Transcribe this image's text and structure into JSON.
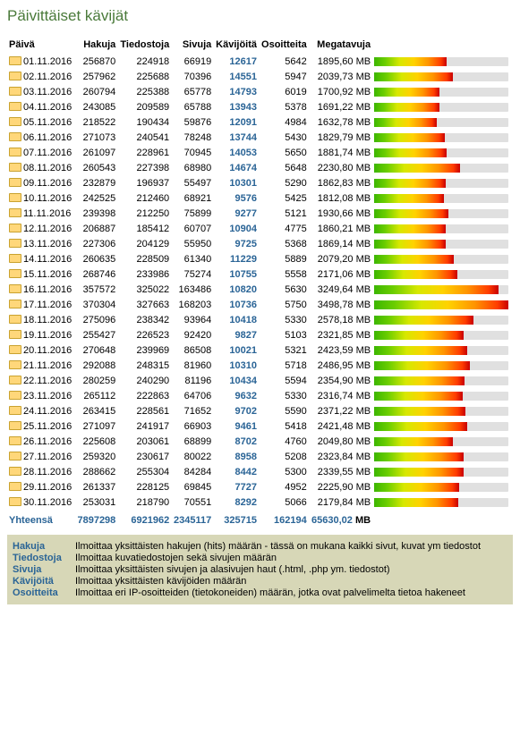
{
  "title": "Päivittäiset kävijät",
  "columns": [
    "Päivä",
    "Hakuja",
    "Tiedostoja",
    "Sivuja",
    "Kävijöitä",
    "Osoitteita",
    "Megatavuja"
  ],
  "maxMb": 3500,
  "rows": [
    {
      "d": "01.11.2016",
      "h": "256870",
      "f": "224918",
      "p": "66919",
      "v": "12617",
      "a": "5642",
      "m": "1895,60 MB",
      "mv": 1895.6
    },
    {
      "d": "02.11.2016",
      "h": "257962",
      "f": "225688",
      "p": "70396",
      "v": "14551",
      "a": "5947",
      "m": "2039,73 MB",
      "mv": 2039.73
    },
    {
      "d": "03.11.2016",
      "h": "260794",
      "f": "225388",
      "p": "65778",
      "v": "14793",
      "a": "6019",
      "m": "1700,92 MB",
      "mv": 1700.92
    },
    {
      "d": "04.11.2016",
      "h": "243085",
      "f": "209589",
      "p": "65788",
      "v": "13943",
      "a": "5378",
      "m": "1691,22 MB",
      "mv": 1691.22
    },
    {
      "d": "05.11.2016",
      "h": "218522",
      "f": "190434",
      "p": "59876",
      "v": "12091",
      "a": "4984",
      "m": "1632,78 MB",
      "mv": 1632.78
    },
    {
      "d": "06.11.2016",
      "h": "271073",
      "f": "240541",
      "p": "78248",
      "v": "13744",
      "a": "5430",
      "m": "1829,79 MB",
      "mv": 1829.79
    },
    {
      "d": "07.11.2016",
      "h": "261097",
      "f": "228961",
      "p": "70945",
      "v": "14053",
      "a": "5650",
      "m": "1881,74 MB",
      "mv": 1881.74
    },
    {
      "d": "08.11.2016",
      "h": "260543",
      "f": "227398",
      "p": "68980",
      "v": "14674",
      "a": "5648",
      "m": "2230,80 MB",
      "mv": 2230.8
    },
    {
      "d": "09.11.2016",
      "h": "232879",
      "f": "196937",
      "p": "55497",
      "v": "10301",
      "a": "5290",
      "m": "1862,83 MB",
      "mv": 1862.83
    },
    {
      "d": "10.11.2016",
      "h": "242525",
      "f": "212460",
      "p": "68921",
      "v": "9576",
      "a": "5425",
      "m": "1812,08 MB",
      "mv": 1812.08
    },
    {
      "d": "11.11.2016",
      "h": "239398",
      "f": "212250",
      "p": "75899",
      "v": "9277",
      "a": "5121",
      "m": "1930,66 MB",
      "mv": 1930.66
    },
    {
      "d": "12.11.2016",
      "h": "206887",
      "f": "185412",
      "p": "60707",
      "v": "10904",
      "a": "4775",
      "m": "1860,21 MB",
      "mv": 1860.21
    },
    {
      "d": "13.11.2016",
      "h": "227306",
      "f": "204129",
      "p": "55950",
      "v": "9725",
      "a": "5368",
      "m": "1869,14 MB",
      "mv": 1869.14
    },
    {
      "d": "14.11.2016",
      "h": "260635",
      "f": "228509",
      "p": "61340",
      "v": "11229",
      "a": "5889",
      "m": "2079,20 MB",
      "mv": 2079.2
    },
    {
      "d": "15.11.2016",
      "h": "268746",
      "f": "233986",
      "p": "75274",
      "v": "10755",
      "a": "5558",
      "m": "2171,06 MB",
      "mv": 2171.06
    },
    {
      "d": "16.11.2016",
      "h": "357572",
      "f": "325022",
      "p": "163486",
      "v": "10820",
      "a": "5630",
      "m": "3249,64 MB",
      "mv": 3249.64
    },
    {
      "d": "17.11.2016",
      "h": "370304",
      "f": "327663",
      "p": "168203",
      "v": "10736",
      "a": "5750",
      "m": "3498,78 MB",
      "mv": 3498.78
    },
    {
      "d": "18.11.2016",
      "h": "275096",
      "f": "238342",
      "p": "93964",
      "v": "10418",
      "a": "5330",
      "m": "2578,18 MB",
      "mv": 2578.18
    },
    {
      "d": "19.11.2016",
      "h": "255427",
      "f": "226523",
      "p": "92420",
      "v": "9827",
      "a": "5103",
      "m": "2321,85 MB",
      "mv": 2321.85
    },
    {
      "d": "20.11.2016",
      "h": "270648",
      "f": "239969",
      "p": "86508",
      "v": "10021",
      "a": "5321",
      "m": "2423,59 MB",
      "mv": 2423.59
    },
    {
      "d": "21.11.2016",
      "h": "292088",
      "f": "248315",
      "p": "81960",
      "v": "10310",
      "a": "5718",
      "m": "2486,95 MB",
      "mv": 2486.95
    },
    {
      "d": "22.11.2016",
      "h": "280259",
      "f": "240290",
      "p": "81196",
      "v": "10434",
      "a": "5594",
      "m": "2354,90 MB",
      "mv": 2354.9
    },
    {
      "d": "23.11.2016",
      "h": "265112",
      "f": "222863",
      "p": "64706",
      "v": "9632",
      "a": "5330",
      "m": "2316,74 MB",
      "mv": 2316.74
    },
    {
      "d": "24.11.2016",
      "h": "263415",
      "f": "228561",
      "p": "71652",
      "v": "9702",
      "a": "5590",
      "m": "2371,22 MB",
      "mv": 2371.22
    },
    {
      "d": "25.11.2016",
      "h": "271097",
      "f": "241917",
      "p": "66903",
      "v": "9461",
      "a": "5418",
      "m": "2421,48 MB",
      "mv": 2421.48
    },
    {
      "d": "26.11.2016",
      "h": "225608",
      "f": "203061",
      "p": "68899",
      "v": "8702",
      "a": "4760",
      "m": "2049,80 MB",
      "mv": 2049.8
    },
    {
      "d": "27.11.2016",
      "h": "259320",
      "f": "230617",
      "p": "80022",
      "v": "8958",
      "a": "5208",
      "m": "2323,84 MB",
      "mv": 2323.84
    },
    {
      "d": "28.11.2016",
      "h": "288662",
      "f": "255304",
      "p": "84284",
      "v": "8442",
      "a": "5300",
      "m": "2339,55 MB",
      "mv": 2339.55
    },
    {
      "d": "29.11.2016",
      "h": "261337",
      "f": "228125",
      "p": "69845",
      "v": "7727",
      "a": "4952",
      "m": "2225,90 MB",
      "mv": 2225.9
    },
    {
      "d": "30.11.2016",
      "h": "253031",
      "f": "218790",
      "p": "70551",
      "v": "8292",
      "a": "5066",
      "m": "2179,84 MB",
      "mv": 2179.84
    }
  ],
  "totals": {
    "label": "Yhteensä",
    "h": "7897298",
    "f": "6921962",
    "p": "2345117",
    "v": "325715",
    "a": "162194",
    "m": "65630,02",
    "suffix": "MB"
  },
  "legend": [
    {
      "key": "Hakuja",
      "val": "Ilmoittaa yksittäisten hakujen (hits) määrän - tässä on mukana kaikki sivut, kuvat ym tiedostot"
    },
    {
      "key": "Tiedostoja",
      "val": "Ilmoittaa kuvatiedostojen sekä sivujen määrän"
    },
    {
      "key": "Sivuja",
      "val": "Ilmoittaa yksittäisten sivujen ja alasivujen haut (.html, .php ym. tiedostot)"
    },
    {
      "key": "Kävijöitä",
      "val": "Ilmoittaa yksittäisten kävijöiden määrän"
    },
    {
      "key": "Osoitteita",
      "val": "Ilmoittaa eri IP-osoitteiden (tietokoneiden) määrän, jotka ovat palvelimelta tietoa hakeneet"
    }
  ]
}
